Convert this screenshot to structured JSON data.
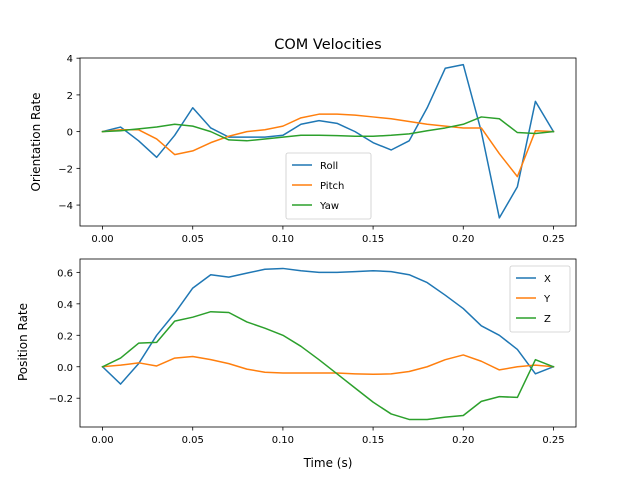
{
  "chart_data": [
    {
      "type": "line",
      "title": "COM Velocities",
      "xlabel": "",
      "ylabel": "Orientation Rate",
      "xlim": [
        -0.0125,
        0.2625
      ],
      "ylim": [
        -5.14,
        4.01
      ],
      "xticks": [
        0.0,
        0.05,
        0.1,
        0.15,
        0.2,
        0.25
      ],
      "xtick_labels": [
        "0.00",
        "0.05",
        "0.10",
        "0.15",
        "0.20",
        "0.25"
      ],
      "yticks": [
        -4,
        -2,
        0,
        2,
        4
      ],
      "ytick_labels": [
        "−4",
        "−2",
        "0",
        "2",
        "4"
      ],
      "legend": "lower-center",
      "grid": false,
      "x": [
        0.0,
        0.01,
        0.02,
        0.03,
        0.04,
        0.05,
        0.06,
        0.07,
        0.08,
        0.09,
        0.1,
        0.11,
        0.12,
        0.13,
        0.14,
        0.15,
        0.16,
        0.17,
        0.18,
        0.19,
        0.2,
        0.21,
        0.22,
        0.23,
        0.24,
        0.25
      ],
      "series": [
        {
          "name": "Roll",
          "color": "#1f77b4",
          "values": [
            0.0,
            0.25,
            -0.5,
            -1.4,
            -0.2,
            1.3,
            0.2,
            -0.3,
            -0.3,
            -0.3,
            -0.2,
            0.4,
            0.6,
            0.45,
            0.0,
            -0.6,
            -1.0,
            -0.5,
            1.3,
            3.45,
            3.65,
            0.0,
            -4.7,
            -3.0,
            1.65,
            0.0
          ]
        },
        {
          "name": "Pitch",
          "color": "#ff7f0e",
          "values": [
            0.0,
            0.1,
            0.1,
            -0.4,
            -1.25,
            -1.05,
            -0.6,
            -0.25,
            0.0,
            0.1,
            0.3,
            0.75,
            0.95,
            0.95,
            0.9,
            0.8,
            0.7,
            0.55,
            0.4,
            0.3,
            0.2,
            0.2,
            -1.2,
            -2.45,
            0.05,
            0.0
          ]
        },
        {
          "name": "Yaw",
          "color": "#2ca02c",
          "values": [
            0.0,
            0.05,
            0.15,
            0.25,
            0.4,
            0.3,
            0.0,
            -0.45,
            -0.5,
            -0.4,
            -0.3,
            -0.2,
            -0.2,
            -0.22,
            -0.25,
            -0.25,
            -0.2,
            -0.12,
            0.05,
            0.2,
            0.4,
            0.8,
            0.7,
            -0.05,
            -0.1,
            0.0
          ]
        }
      ]
    },
    {
      "type": "line",
      "title": "",
      "xlabel": "Time (s)",
      "ylabel": "Position Rate",
      "xlim": [
        -0.0125,
        0.2625
      ],
      "ylim": [
        -0.383,
        0.685
      ],
      "xticks": [
        0.0,
        0.05,
        0.1,
        0.15,
        0.2,
        0.25
      ],
      "xtick_labels": [
        "0.00",
        "0.05",
        "0.10",
        "0.15",
        "0.20",
        "0.25"
      ],
      "yticks": [
        -0.2,
        0.0,
        0.2,
        0.4,
        0.6
      ],
      "ytick_labels": [
        "−0.2",
        "0.0",
        "0.2",
        "0.4",
        "0.6"
      ],
      "legend": "top-right",
      "grid": false,
      "x": [
        0.0,
        0.01,
        0.02,
        0.03,
        0.04,
        0.05,
        0.06,
        0.07,
        0.08,
        0.09,
        0.1,
        0.11,
        0.12,
        0.13,
        0.14,
        0.15,
        0.16,
        0.17,
        0.18,
        0.19,
        0.2,
        0.21,
        0.22,
        0.23,
        0.24,
        0.25
      ],
      "series": [
        {
          "name": "X",
          "color": "#1f77b4",
          "values": [
            0.0,
            -0.11,
            0.02,
            0.2,
            0.34,
            0.5,
            0.585,
            0.57,
            0.595,
            0.62,
            0.625,
            0.61,
            0.6,
            0.6,
            0.605,
            0.61,
            0.605,
            0.585,
            0.535,
            0.455,
            0.37,
            0.26,
            0.2,
            0.11,
            -0.045,
            0.0
          ]
        },
        {
          "name": "Y",
          "color": "#ff7f0e",
          "values": [
            0.0,
            0.01,
            0.025,
            0.005,
            0.055,
            0.065,
            0.045,
            0.02,
            -0.015,
            -0.035,
            -0.04,
            -0.04,
            -0.04,
            -0.04,
            -0.045,
            -0.048,
            -0.045,
            -0.03,
            0.0,
            0.045,
            0.075,
            0.035,
            -0.02,
            0.0,
            0.01,
            0.0
          ]
        },
        {
          "name": "Z",
          "color": "#2ca02c",
          "values": [
            0.0,
            0.055,
            0.15,
            0.155,
            0.29,
            0.315,
            0.35,
            0.345,
            0.285,
            0.245,
            0.2,
            0.13,
            0.045,
            -0.045,
            -0.135,
            -0.225,
            -0.3,
            -0.335,
            -0.335,
            -0.32,
            -0.31,
            -0.22,
            -0.19,
            -0.195,
            0.045,
            0.0
          ]
        }
      ]
    }
  ]
}
